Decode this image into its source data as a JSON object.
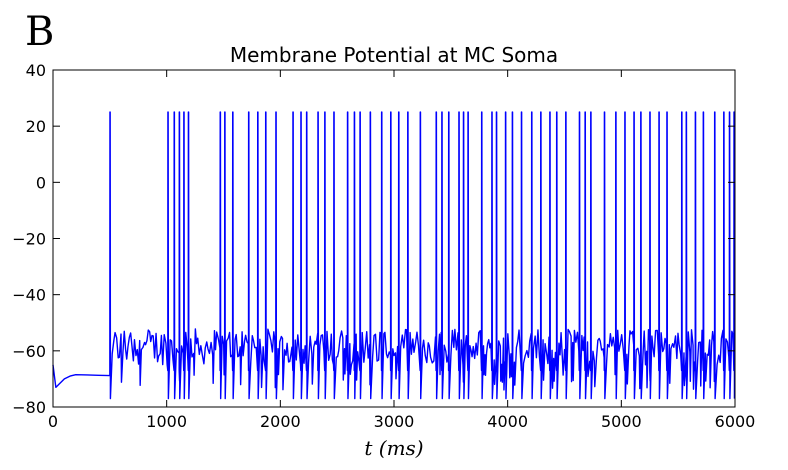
{
  "panel_label": "B",
  "chart_data": {
    "type": "line",
    "title": "Membrane Potential at MC Soma",
    "xlabel": "t (ms)",
    "ylabel": "",
    "xlim": [
      0,
      6000
    ],
    "ylim": [
      -80,
      40
    ],
    "xticks": [
      0,
      1000,
      2000,
      3000,
      4000,
      5000,
      6000
    ],
    "yticks": [
      40,
      20,
      0,
      -20,
      -40,
      -60,
      -80
    ],
    "ytick_labels": [
      "40",
      "20",
      "0",
      "−20",
      "−40",
      "−60",
      "−80"
    ],
    "grid": false,
    "series": [
      {
        "color": "#0000ff",
        "baseline": {
          "x": [
            0,
            25,
            50,
            100,
            150,
            200,
            300,
            400,
            500
          ],
          "y": [
            -65,
            -73,
            -72,
            -70,
            -69,
            -68.5,
            -68.6,
            -68.7,
            -68.8
          ]
        },
        "spike_peak": 25,
        "spike_trough": -77,
        "subthreshold_range": [
          -65,
          -52
        ],
        "spike_times": [
          500,
          1010,
          1065,
          1110,
          1150,
          1190,
          1470,
          1510,
          1580,
          1720,
          1800,
          1870,
          1960,
          2110,
          2180,
          2230,
          2330,
          2390,
          2470,
          2590,
          2650,
          2700,
          2790,
          2890,
          2970,
          3040,
          3120,
          3230,
          3370,
          3420,
          3480,
          3570,
          3610,
          3650,
          3770,
          3860,
          3900,
          3980,
          4040,
          4120,
          4210,
          4290,
          4370,
          4430,
          4510,
          4630,
          4680,
          4730,
          4850,
          4950,
          5030,
          5110,
          5170,
          5250,
          5330,
          5400,
          5530,
          5570,
          5650,
          5720,
          5820,
          5900,
          5950,
          5990
        ]
      }
    ]
  }
}
